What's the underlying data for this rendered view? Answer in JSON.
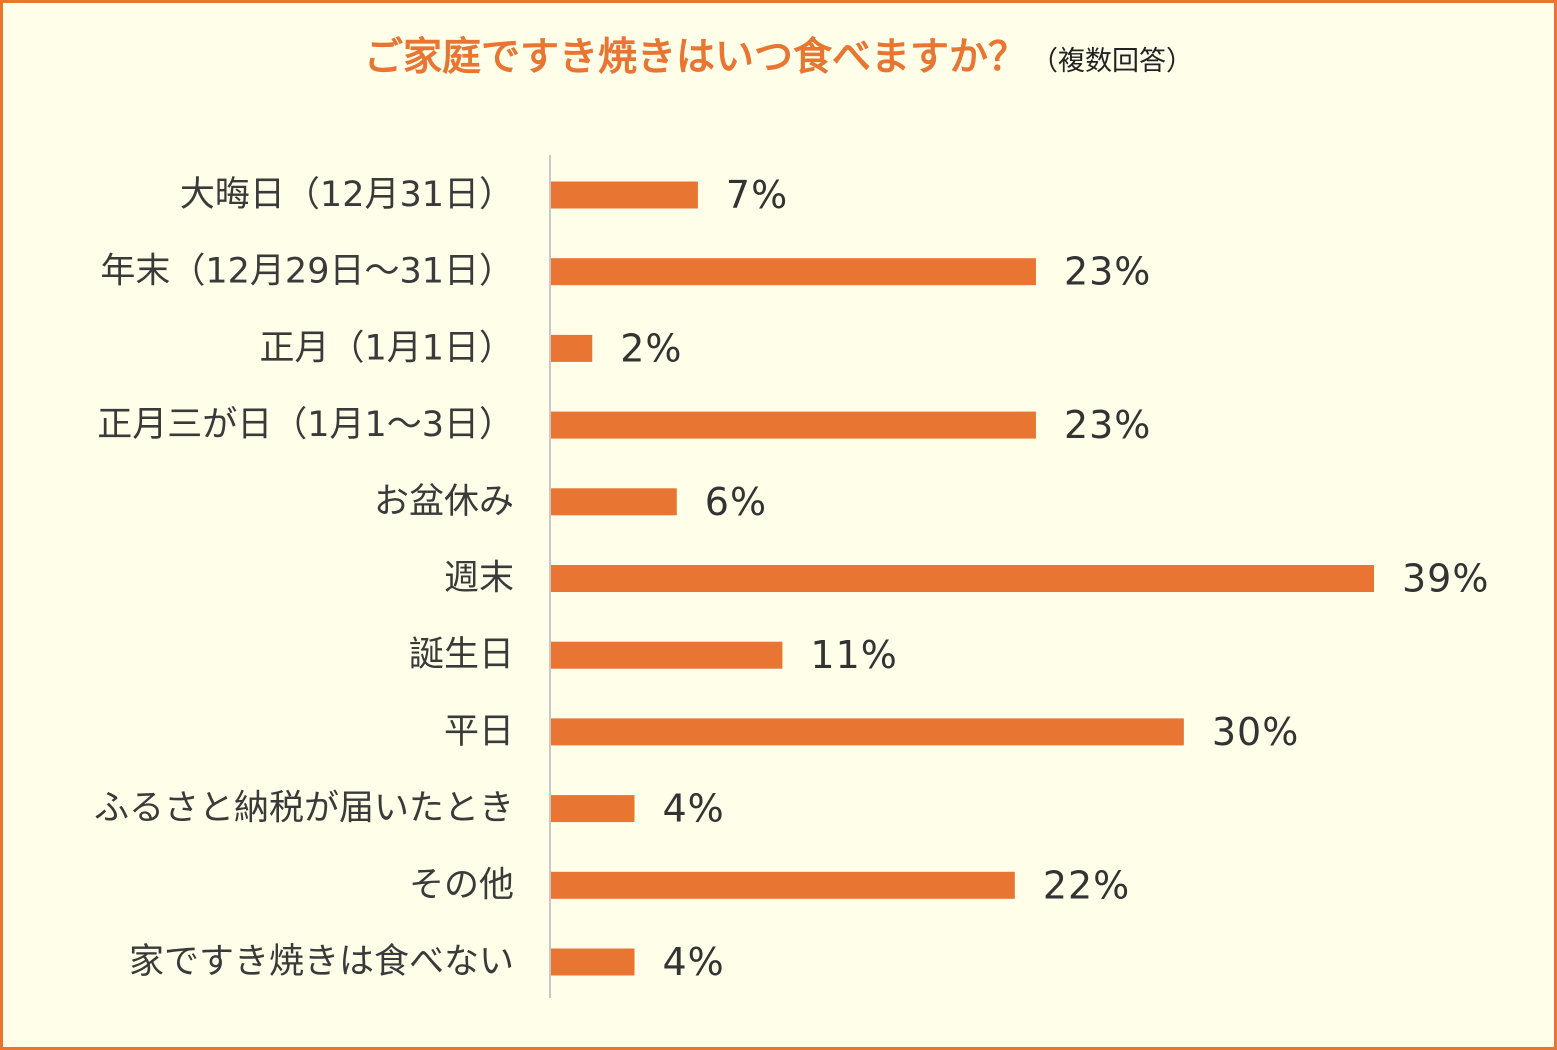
{
  "title": {
    "main": "ご家庭ですき焼きはいつ食べますか？",
    "sub": "（複数回答）"
  },
  "colors": {
    "bar": "#E87532",
    "title": "#E87532",
    "background": "#FFFEE9",
    "border": "#E87532",
    "axis": "#C8C8C8"
  },
  "chart_data": {
    "type": "bar",
    "orientation": "horizontal",
    "unit": "%",
    "xlim": [
      0,
      39
    ],
    "grid": false,
    "legend": "none",
    "categories": [
      "大晦日（12月31日）",
      "年末（12月29日～31日）",
      "正月（1月1日）",
      "正月三が日（1月1～3日）",
      "お盆休み",
      "週末",
      "誕生日",
      "平日",
      "ふるさと納税が届いたとき",
      "その他",
      "家ですき焼きは食べない"
    ],
    "values": [
      7,
      23,
      2,
      23,
      6,
      39,
      11,
      30,
      4,
      22,
      4
    ],
    "value_labels": [
      "7%",
      "23%",
      "2%",
      "23%",
      "6%",
      "39%",
      "11%",
      "30%",
      "4%",
      "22%",
      "4%"
    ]
  }
}
